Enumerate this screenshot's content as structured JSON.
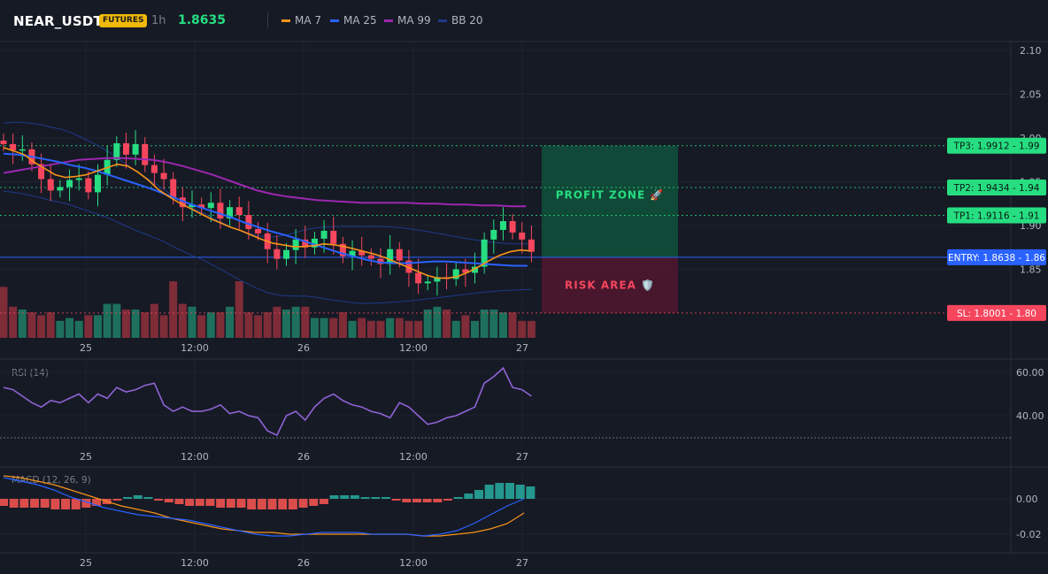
{
  "header": {
    "symbol": "NEAR_USDT",
    "badge": "FUTURES",
    "timeframe": "1h",
    "price": "1.8635",
    "legend": [
      {
        "label": "MA 7",
        "color": "#f7931a"
      },
      {
        "label": "MA 25",
        "color": "#2962ff"
      },
      {
        "label": "MA 99",
        "color": "#9c27b0"
      },
      {
        "label": "BB 20",
        "color": "#1e3a8a"
      }
    ]
  },
  "colors": {
    "up": "#26de81",
    "down": "#f6465d",
    "bg": "#161a25"
  },
  "chart_data": {
    "type": "candlestick",
    "x_ticks": [
      "25",
      "12:00",
      "26",
      "12:00",
      "27"
    ],
    "price_axis": {
      "ticks": [
        "2.10",
        "2.05",
        "2.00",
        "1.95",
        "1.90",
        "1.85"
      ],
      "ylim": [
        1.77,
        2.11
      ]
    },
    "levels": [
      {
        "name": "TP3",
        "label": "TP3: 1.9912 - 1.99",
        "value": 1.9912,
        "color": "#26de81"
      },
      {
        "name": "TP2",
        "label": "TP2: 1.9434 - 1.94",
        "value": 1.9434,
        "color": "#26de81"
      },
      {
        "name": "TP1",
        "label": "TP1: 1.9116 - 1.91",
        "value": 1.9116,
        "color": "#26de81"
      },
      {
        "name": "ENTRY",
        "label": "ENTRY: 1.8638 - 1.86",
        "value": 1.8638,
        "color": "#2962ff"
      },
      {
        "name": "SL",
        "label": "SL: 1.8001 - 1.80",
        "value": 1.8001,
        "color": "#f6465d"
      }
    ],
    "zones": {
      "profit": "PROFIT ZONE 🚀",
      "risk": "RISK AREA 🛡️"
    },
    "candles_close": [
      1.993,
      1.986,
      1.987,
      1.97,
      1.953,
      1.94,
      1.944,
      1.952,
      1.954,
      1.938,
      1.958,
      1.975,
      1.994,
      1.981,
      1.993,
      1.969,
      1.96,
      1.953,
      1.932,
      1.921,
      1.924,
      1.92,
      1.926,
      1.908,
      1.921,
      1.912,
      1.896,
      1.891,
      1.873,
      1.862,
      1.872,
      1.884,
      1.875,
      1.885,
      1.894,
      1.879,
      1.865,
      1.871,
      1.866,
      1.862,
      1.856,
      1.873,
      1.86,
      1.846,
      1.834,
      1.836,
      1.841,
      1.839,
      1.85,
      1.846,
      1.853,
      1.884,
      1.895,
      1.905,
      1.892,
      1.884,
      1.87
    ],
    "ma7": [
      1.989,
      1.985,
      1.981,
      1.972,
      1.965,
      1.958,
      1.955,
      1.956,
      1.958,
      1.962,
      1.966,
      1.97,
      1.968,
      1.961,
      1.952,
      1.941,
      1.933,
      1.926,
      1.92,
      1.914,
      1.908,
      1.903,
      1.898,
      1.894,
      1.889,
      1.884,
      1.88,
      1.878,
      1.876,
      1.876,
      1.877,
      1.879,
      1.878,
      1.876,
      1.873,
      1.87,
      1.867,
      1.863,
      1.858,
      1.853,
      1.848,
      1.843,
      1.84,
      1.84,
      1.842,
      1.847,
      1.853,
      1.86,
      1.866,
      1.87,
      1.872,
      1.871
    ],
    "ma25": [
      1.982,
      1.981,
      1.979,
      1.976,
      1.973,
      1.969,
      1.966,
      1.962,
      1.957,
      1.952,
      1.947,
      1.942,
      1.936,
      1.93,
      1.924,
      1.919,
      1.914,
      1.909,
      1.903,
      1.898,
      1.893,
      1.889,
      1.884,
      1.879,
      1.874,
      1.869,
      1.865,
      1.861,
      1.858,
      1.857,
      1.857,
      1.858,
      1.859,
      1.859,
      1.858,
      1.857,
      1.856,
      1.855,
      1.854,
      1.854
    ],
    "ma99": [
      1.96,
      1.963,
      1.966,
      1.969,
      1.972,
      1.975,
      1.976,
      1.977,
      1.977,
      1.976,
      1.975,
      1.972,
      1.968,
      1.963,
      1.958,
      1.952,
      1.946,
      1.94,
      1.936,
      1.933,
      1.931,
      1.929,
      1.928,
      1.927,
      1.926,
      1.926,
      1.926,
      1.926,
      1.925,
      1.925,
      1.924,
      1.924,
      1.923,
      1.923,
      1.922,
      1.922
    ],
    "volume": [
      0.9,
      0.55,
      0.5,
      0.45,
      0.4,
      0.45,
      0.3,
      0.35,
      0.3,
      0.4,
      0.4,
      0.6,
      0.6,
      0.5,
      0.5,
      0.45,
      0.6,
      0.4,
      1.0,
      0.6,
      0.55,
      0.4,
      0.45,
      0.45,
      0.55,
      1.0,
      0.45,
      0.4,
      0.45,
      0.55,
      0.5,
      0.55,
      0.55,
      0.35,
      0.35,
      0.35,
      0.45,
      0.3,
      0.35,
      0.3,
      0.3,
      0.35,
      0.35,
      0.3,
      0.3,
      0.5,
      0.55,
      0.5,
      0.3,
      0.4,
      0.3,
      0.5,
      0.5,
      0.45,
      0.45,
      0.3,
      0.3
    ],
    "rsi": {
      "label": "RSI (14)",
      "ticks": [
        "60.00",
        "40.00"
      ],
      "ylim": [
        28,
        66
      ],
      "values": [
        53,
        52,
        49,
        46,
        44,
        47,
        46,
        48,
        50,
        46,
        50,
        48,
        53,
        51,
        52,
        54,
        55,
        45,
        42,
        44,
        42,
        42,
        43,
        45,
        41,
        42,
        40,
        39,
        33,
        31,
        40,
        42,
        38,
        44,
        48,
        50,
        47,
        45,
        44,
        42,
        41,
        39,
        46,
        44,
        40,
        36,
        37,
        39,
        40,
        42,
        44,
        55,
        58,
        62,
        53,
        52,
        49
      ]
    },
    "macd": {
      "label": "MACD (12, 26, 9)",
      "ticks": [
        "0.00",
        "-0.02"
      ],
      "ylim": [
        -0.03,
        0.02
      ],
      "hist": [
        -0.004,
        -0.005,
        -0.005,
        -0.005,
        -0.005,
        -0.006,
        -0.006,
        -0.006,
        -0.005,
        -0.004,
        -0.003,
        -0.001,
        0.001,
        0.002,
        0.001,
        -0.001,
        -0.002,
        -0.003,
        -0.004,
        -0.004,
        -0.004,
        -0.005,
        -0.005,
        -0.005,
        -0.006,
        -0.006,
        -0.006,
        -0.006,
        -0.006,
        -0.005,
        -0.004,
        -0.003,
        0.002,
        0.002,
        0.002,
        0.001,
        0.001,
        0.001,
        -0.001,
        -0.002,
        -0.002,
        -0.002,
        -0.002,
        -0.001,
        0.001,
        0.003,
        0.005,
        0.008,
        0.009,
        0.009,
        0.008,
        0.007
      ],
      "macd": [
        0.012,
        0.01,
        0.008,
        0.005,
        0.001,
        -0.002,
        -0.005,
        -0.007,
        -0.009,
        -0.01,
        -0.011,
        -0.012,
        -0.014,
        -0.016,
        -0.018,
        -0.02,
        -0.021,
        -0.021,
        -0.02,
        -0.019,
        -0.019,
        -0.019,
        -0.02,
        -0.02,
        -0.02,
        -0.021,
        -0.02,
        -0.018,
        -0.014,
        -0.009,
        -0.004,
        0.0
      ],
      "signal": [
        0.013,
        0.012,
        0.01,
        0.008,
        0.005,
        0.002,
        -0.001,
        -0.004,
        -0.006,
        -0.008,
        -0.011,
        -0.013,
        -0.015,
        -0.017,
        -0.018,
        -0.019,
        -0.019,
        -0.02,
        -0.02,
        -0.02,
        -0.02,
        -0.02,
        -0.02,
        -0.02,
        -0.02,
        -0.021,
        -0.021,
        -0.02,
        -0.019,
        -0.017,
        -0.014,
        -0.008
      ]
    }
  }
}
